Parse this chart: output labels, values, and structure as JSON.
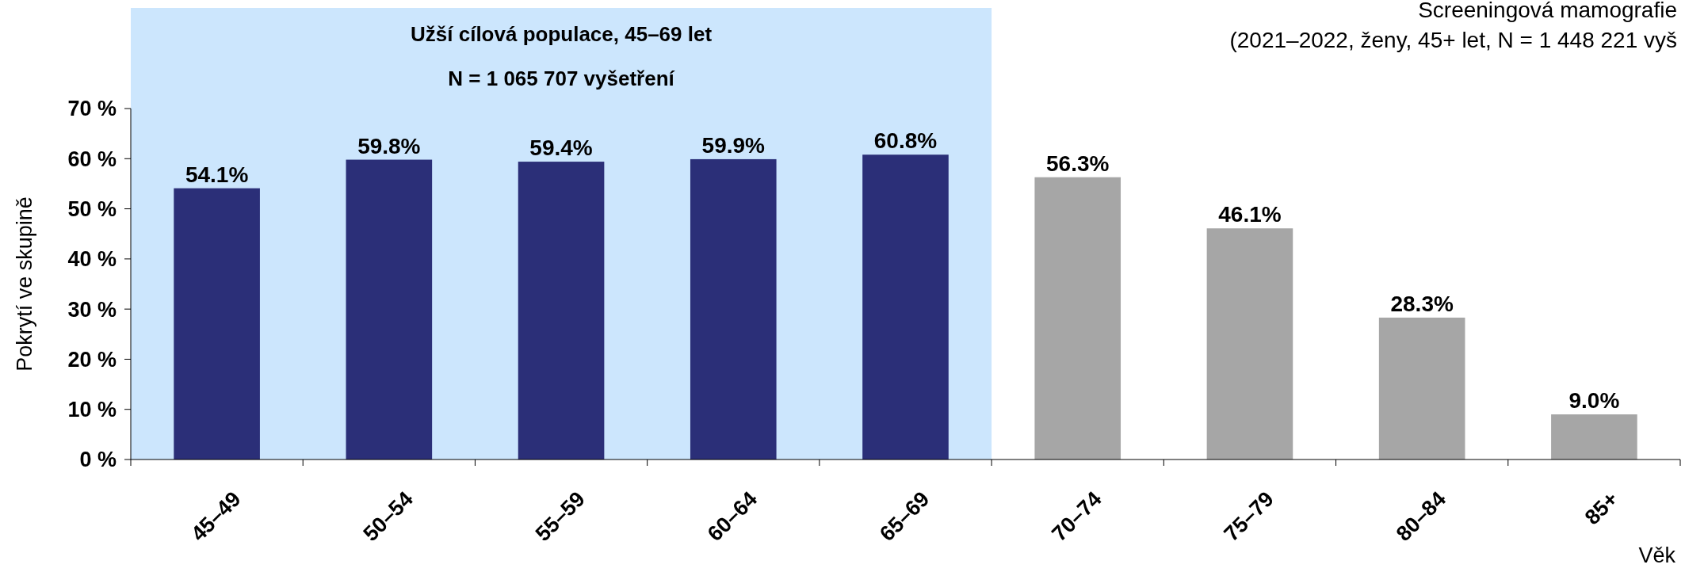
{
  "chart_data": {
    "type": "bar",
    "title": "Screeningová mamografie",
    "subtitle": "(2021–2022, ženy, 45+ let, N = 1 448 221 vyš",
    "ylabel": "Pokrytí ve skupině",
    "xlabel": "Věk",
    "categories": [
      "45–49",
      "50–54",
      "55–59",
      "60–64",
      "65–69",
      "70–74",
      "75–79",
      "80–84",
      "85+"
    ],
    "values": [
      54.1,
      59.8,
      59.4,
      59.9,
      60.8,
      56.3,
      46.1,
      28.3,
      9.0
    ],
    "value_labels": [
      "54.1%",
      "59.8%",
      "59.4%",
      "59.9%",
      "60.8%",
      "56.3%",
      "46.1%",
      "28.3%",
      "9.0%"
    ],
    "colors": [
      "#2b2f78",
      "#2b2f78",
      "#2b2f78",
      "#2b2f78",
      "#2b2f78",
      "#a6a6a6",
      "#a6a6a6",
      "#a6a6a6",
      "#a6a6a6"
    ],
    "ylim": [
      0,
      70
    ],
    "yticks": [
      {
        "value": 0,
        "label": "0 %"
      },
      {
        "value": 10,
        "label": "10 %"
      },
      {
        "value": 20,
        "label": "20 %"
      },
      {
        "value": 30,
        "label": "30 %"
      },
      {
        "value": 40,
        "label": "40 %"
      },
      {
        "value": 50,
        "label": "50 %"
      },
      {
        "value": 60,
        "label": "60 %"
      },
      {
        "value": 70,
        "label": "70 %"
      }
    ],
    "bands": [
      {
        "axis": "x",
        "from": "45–49",
        "to": "65–69",
        "label": "Užší cílová populace, 45–69 let",
        "color": "#cce6fd"
      }
    ],
    "annotations": [
      "N = 1 065 707 vyšetření"
    ]
  }
}
